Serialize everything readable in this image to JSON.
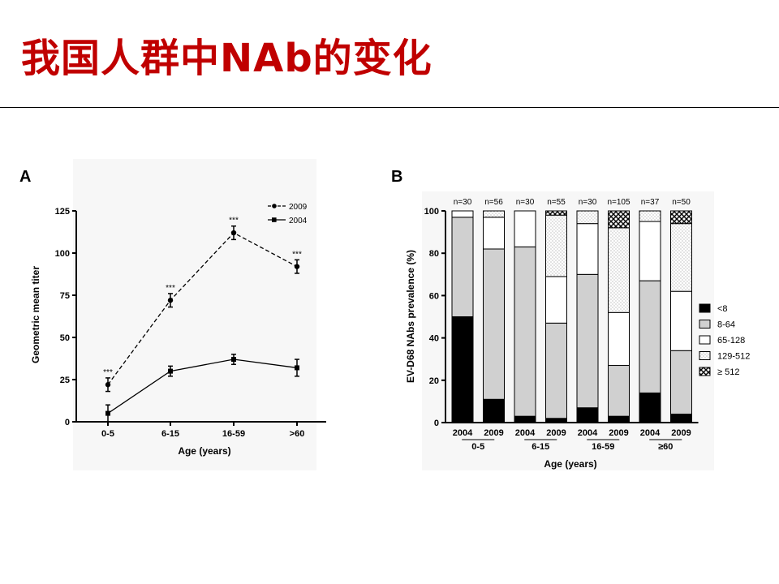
{
  "slide": {
    "title": "我国人群中NAb的变化"
  },
  "chart_data": [
    {
      "panel_label": "A",
      "type": "line",
      "categories": [
        "0-5",
        "6-15",
        "16-59",
        ">60"
      ],
      "xlabel": "Age (years)",
      "ylabel": "Geometric mean titer",
      "ylim": [
        0,
        125
      ],
      "yticks": [
        0,
        25,
        50,
        75,
        100,
        125
      ],
      "legend_position": "top-right",
      "series": [
        {
          "name": "2009",
          "style": "dashed",
          "marker": "circle",
          "values": [
            22,
            72,
            112,
            92
          ],
          "errors": [
            4,
            4,
            4,
            4
          ]
        },
        {
          "name": "2004",
          "style": "solid",
          "marker": "square",
          "values": [
            5,
            30,
            37,
            32
          ],
          "errors": [
            5,
            3,
            3,
            5
          ]
        }
      ],
      "annotations": [
        "***",
        "***",
        "***",
        "***"
      ]
    },
    {
      "panel_label": "B",
      "type": "bar",
      "stacked": true,
      "xlabel": "Age (years)",
      "ylabel": "EV-D68 NAbs prevalence (%)",
      "ylim": [
        0,
        100
      ],
      "yticks": [
        0,
        20,
        40,
        60,
        80,
        100
      ],
      "categories": [
        "2004",
        "2009",
        "2004",
        "2009",
        "2004",
        "2009",
        "2004",
        "2009"
      ],
      "age_groups": [
        "0-5",
        "6-15",
        "16-59",
        "≥60"
      ],
      "n_labels": [
        "n=30",
        "n=56",
        "n=30",
        "n=55",
        "n=30",
        "n=105",
        "n=37",
        "n=50"
      ],
      "series": [
        {
          "name": "<8",
          "values": [
            50,
            11,
            3,
            2,
            7,
            3,
            14,
            4
          ]
        },
        {
          "name": "8-64",
          "values": [
            47,
            71,
            80,
            45,
            63,
            24,
            53,
            30
          ]
        },
        {
          "name": "65-128",
          "values": [
            3,
            15,
            17,
            22,
            24,
            25,
            28,
            28
          ]
        },
        {
          "name": "129-512",
          "values": [
            0,
            3,
            0,
            29,
            6,
            40,
            5,
            32
          ]
        },
        {
          "name": "≥ 512",
          "values": [
            0,
            0,
            0,
            2,
            0,
            8,
            0,
            6
          ]
        }
      ],
      "legend_position": "right"
    }
  ]
}
